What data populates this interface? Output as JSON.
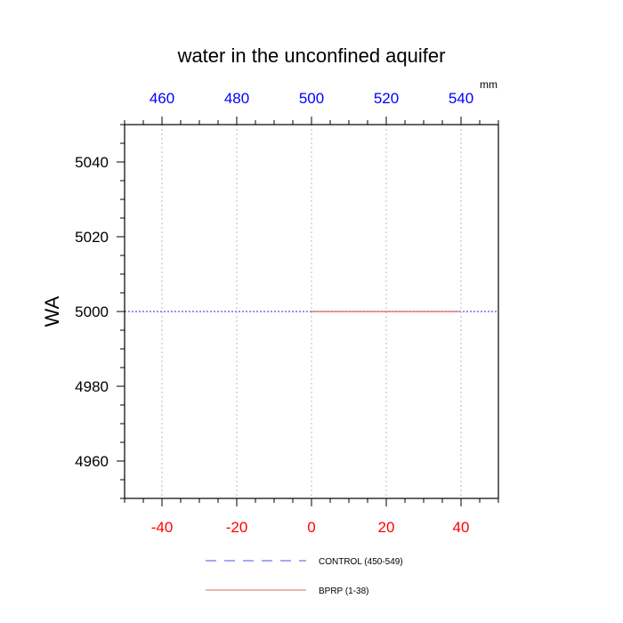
{
  "chart_data": {
    "type": "line",
    "title": "water in the unconfined aquifer",
    "ylabel": "WA",
    "top_axis_unit": "mm",
    "xlim": [
      -50,
      50
    ],
    "ylim": [
      4950,
      5050
    ],
    "x_ticks": [
      -40,
      -20,
      0,
      20,
      40
    ],
    "x_tick_labels": [
      "-40",
      "-20",
      "0",
      "20",
      "40"
    ],
    "top_ticks": [
      -40,
      -20,
      0,
      20,
      40
    ],
    "top_tick_labels": [
      "460",
      "480",
      "500",
      "520",
      "540"
    ],
    "y_ticks": [
      4960,
      4980,
      5000,
      5020,
      5040
    ],
    "y_tick_labels": [
      "4960",
      "4980",
      "5000",
      "5020",
      "5040"
    ],
    "grid": "vertical dotted at x ticks",
    "colors": {
      "bottom_ticks": "#ff0000",
      "top_ticks": "#0000ff",
      "control": "#4a55e0",
      "bprp": "#e06666",
      "grid": "#bbbbbb"
    },
    "series": [
      {
        "name": "CONTROL (450-549)",
        "style": "dashed",
        "x": [
          -50,
          50
        ],
        "y": [
          5000,
          5000
        ]
      },
      {
        "name": "BPRP (1-38)",
        "style": "solid",
        "x": [
          0,
          40
        ],
        "y": [
          5000,
          5000
        ]
      }
    ],
    "legend_placement": "bottom"
  }
}
